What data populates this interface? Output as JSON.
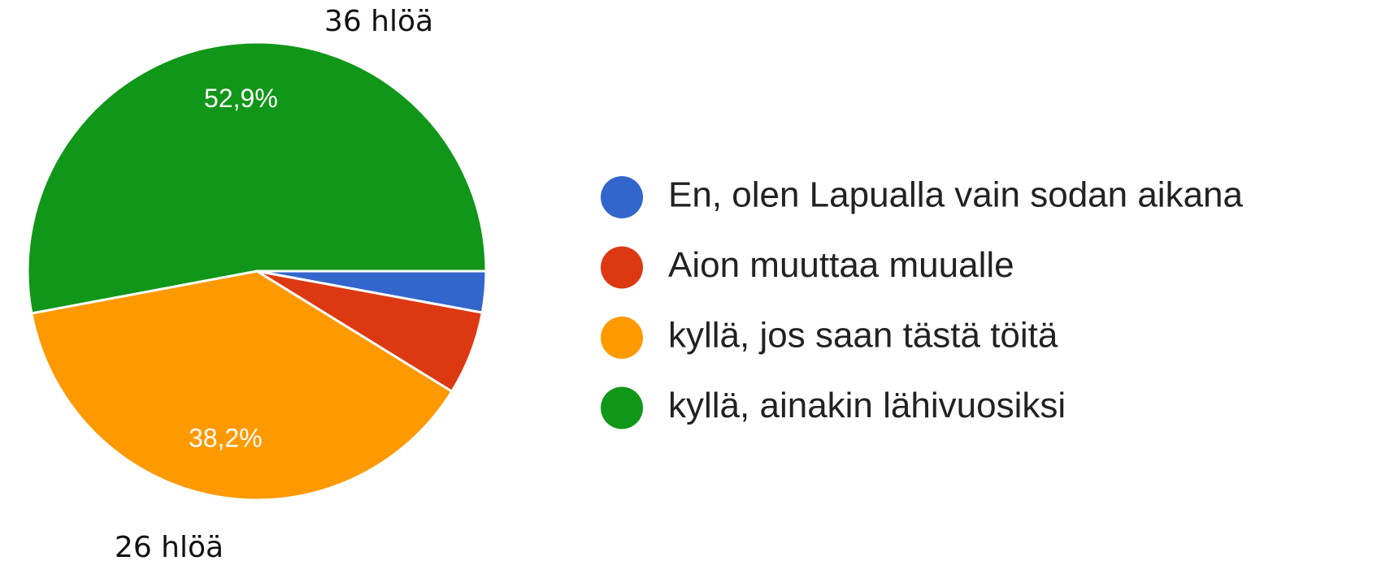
{
  "chart_data": {
    "type": "pie",
    "categories": [
      "En, olen Lapualla vain sodan aikana",
      "Aion muuttaa muualle",
      "kyllä, jos saan tästä töitä",
      "kyllä, ainakin lähivuosiksi"
    ],
    "values": [
      2.9,
      5.9,
      38.2,
      52.9
    ],
    "value_labels": [
      null,
      null,
      "38,2%",
      "52,9%"
    ],
    "colors": [
      "#3366cc",
      "#dc3912",
      "#ff9900",
      "#109618"
    ],
    "annotations": [
      {
        "text": "36 hlöä"
      },
      {
        "text": "26 hlöä"
      }
    ]
  }
}
